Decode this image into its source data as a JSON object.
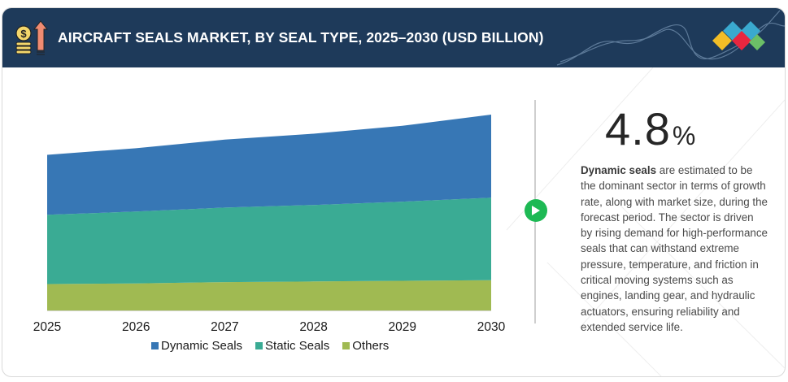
{
  "header": {
    "title": "AIRCRAFT SEALS MARKET, BY SEAL TYPE, 2025–2030 (USD BILLION)",
    "icon": "money-growth-icon",
    "logo": "brand-diamonds-logo"
  },
  "colors": {
    "header_bg": "#1e3a5a",
    "dynamic": "#3777b5",
    "static": "#3aab94",
    "others": "#a0ba52",
    "play": "#1db954",
    "logo_diamonds": [
      "#f2bd26",
      "#3aa9cf",
      "#e8263f",
      "#3aa9cf",
      "#6bbf67"
    ]
  },
  "chart_data": {
    "type": "area",
    "stacked": true,
    "title": "AIRCRAFT SEALS MARKET, BY SEAL TYPE, 2025–2030 (USD BILLION)",
    "xlabel": "",
    "ylabel": "",
    "categories": [
      "2025",
      "2026",
      "2027",
      "2028",
      "2029",
      "2030"
    ],
    "series": [
      {
        "name": "Others",
        "values": [
          0.4,
          0.41,
          0.43,
          0.44,
          0.45,
          0.46
        ]
      },
      {
        "name": "Static Seals",
        "values": [
          1.05,
          1.09,
          1.13,
          1.16,
          1.2,
          1.25
        ]
      },
      {
        "name": "Dynamic Seals",
        "values": [
          0.91,
          0.96,
          1.03,
          1.08,
          1.15,
          1.26
        ]
      }
    ],
    "ylim": [
      0,
      3.5
    ],
    "y_axis_visible": false,
    "grid": false,
    "legend": {
      "position": "bottom",
      "entries": [
        "Dynamic Seals",
        "Static Seals",
        "Others"
      ]
    },
    "note": "Values are estimated; no y-axis is shown in the figure."
  },
  "insight": {
    "cagr_value": "4.8",
    "cagr_unit": "%",
    "play_icon": "play-icon",
    "description_bold": "Dynamic seals",
    "description_rest": " are estimated to be the dominant sector in terms of growth rate, along with market size, during the forecast period. The sector is driven by rising demand for high-performance seals that can withstand extreme pressure, temperature, and friction in critical moving systems such as engines, landing gear, and hydraulic actuators, ensuring reliability and extended service life."
  }
}
